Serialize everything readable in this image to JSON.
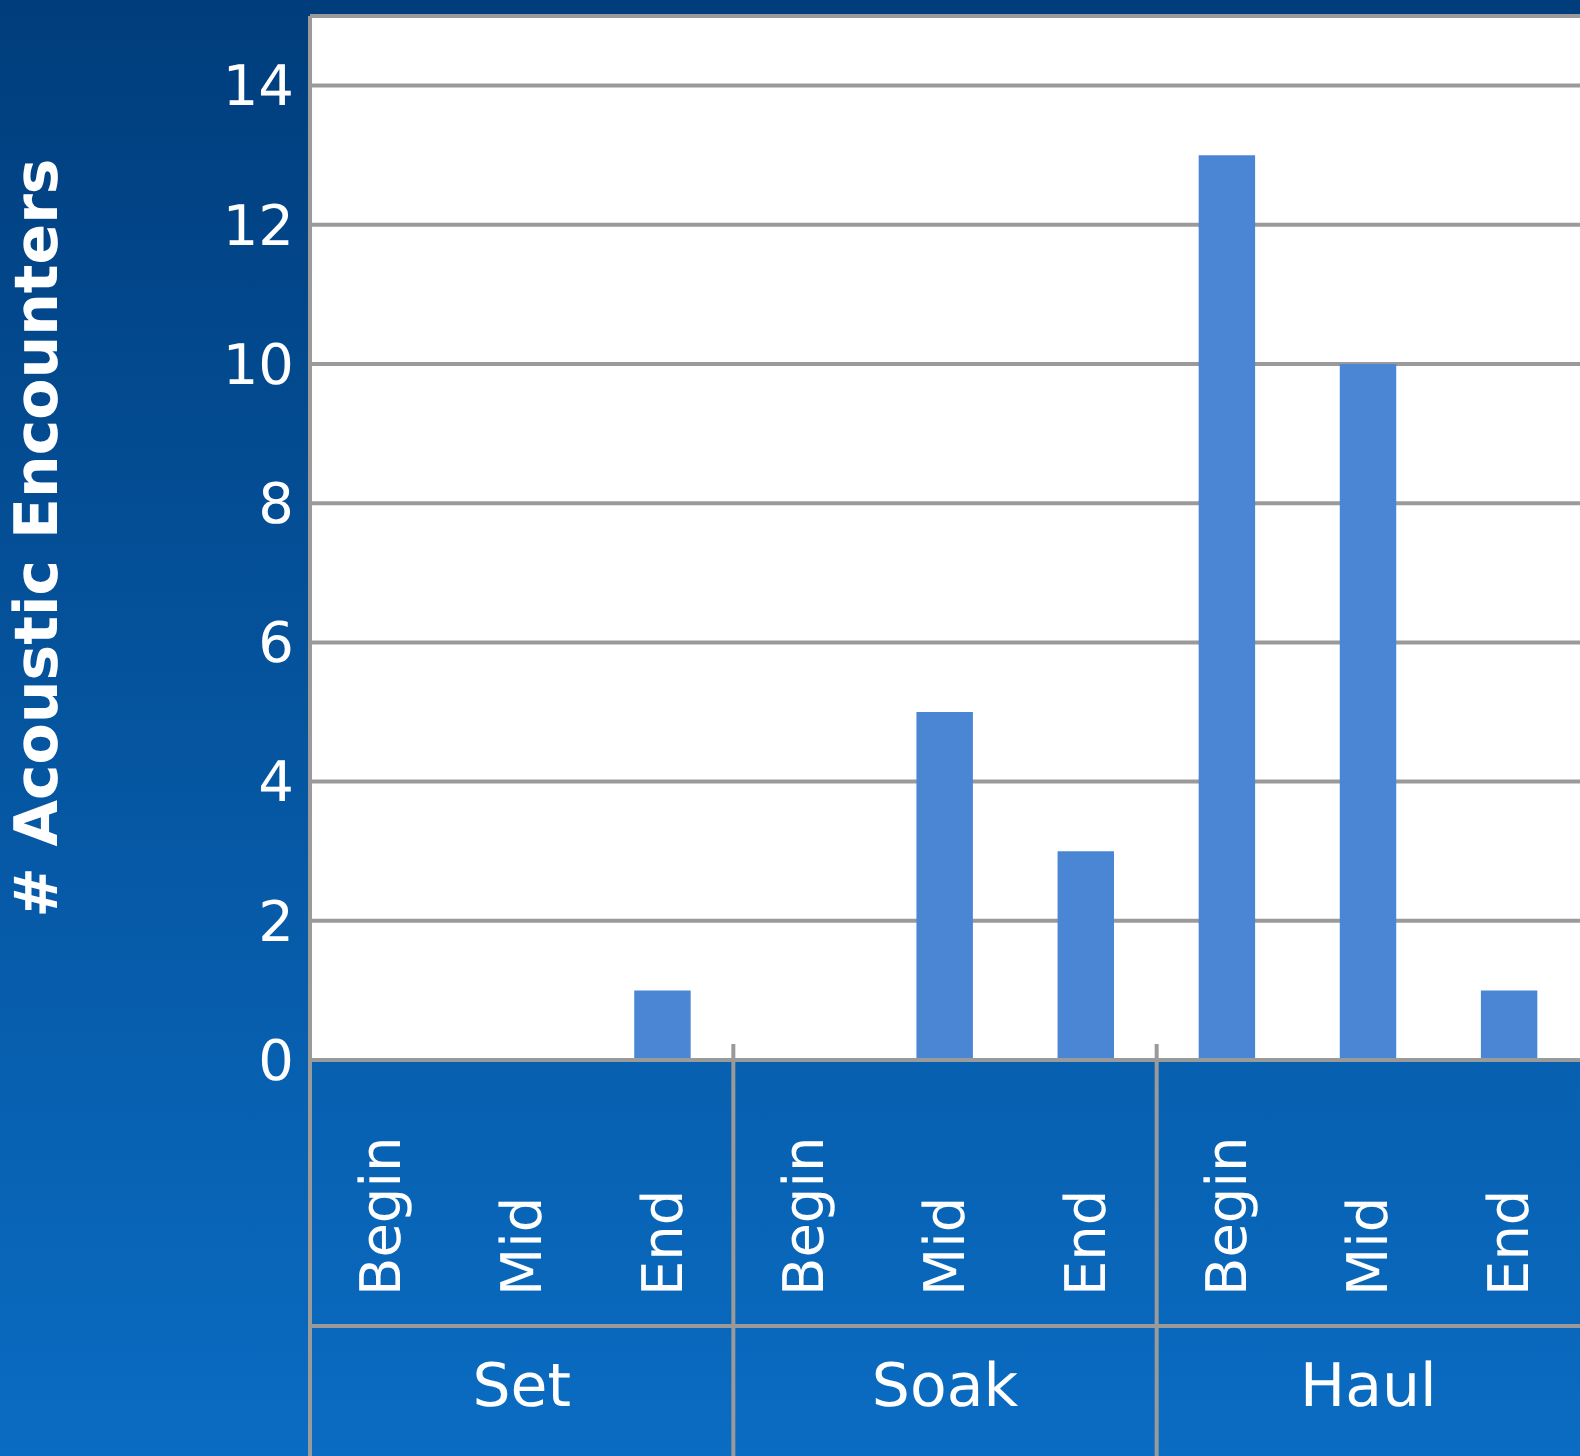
{
  "chart_data": {
    "type": "bar",
    "ylabel": "# Acoustic Encounters",
    "categories": [
      "Begin",
      "Mid",
      "End",
      "Begin",
      "Mid",
      "End",
      "Begin",
      "Mid",
      "End"
    ],
    "values": [
      0,
      0,
      1,
      0,
      5,
      3,
      13,
      10,
      1
    ],
    "color": "#4a86d4",
    "ylim": [
      0,
      15
    ],
    "yticks": [
      0,
      2,
      4,
      6,
      8,
      10,
      12,
      14
    ],
    "grid": "y",
    "annotations": [
      "Set",
      "Soak",
      "Haul"
    ]
  }
}
